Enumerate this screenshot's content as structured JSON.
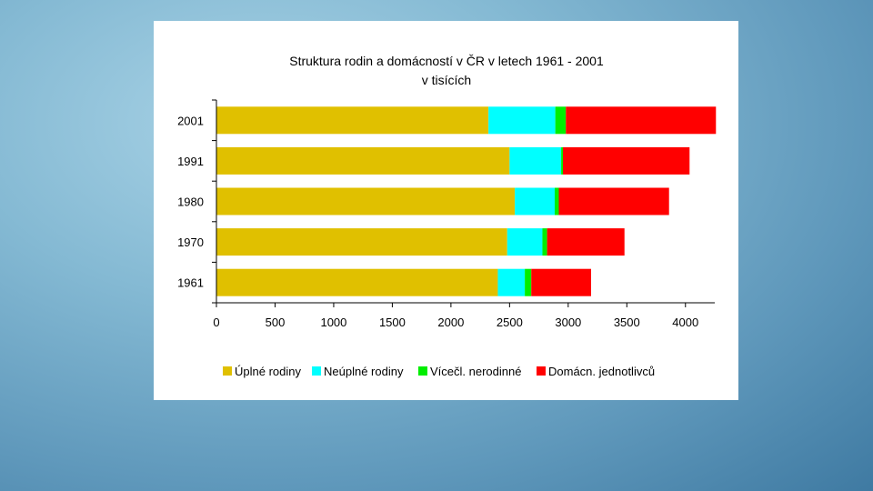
{
  "chart_data": {
    "type": "bar",
    "orientation": "horizontal",
    "stacked": true,
    "title": "Struktura rodin a domácností v ČR v letech 1961 - 2001",
    "subtitle": "v tisících",
    "categories": [
      "2001",
      "1991",
      "1980",
      "1970",
      "1961"
    ],
    "series": [
      {
        "name": "Úplné rodiny",
        "color": "#e0c000",
        "values": [
          2320,
          2500,
          2545,
          2480,
          2400
        ]
      },
      {
        "name": "Neúplné rodiny",
        "color": "#00ffff",
        "values": [
          570,
          440,
          340,
          300,
          230
        ]
      },
      {
        "name": "Vícečl. nerodinné",
        "color": "#00ee00",
        "values": [
          90,
          15,
          35,
          40,
          55
        ]
      },
      {
        "name": "Domácn. jednotlivců",
        "color": "#ff0000",
        "values": [
          1280,
          1080,
          940,
          660,
          510
        ]
      }
    ],
    "x_ticks": [
      0,
      500,
      1000,
      1500,
      2000,
      2500,
      3000,
      3500,
      4000
    ],
    "xlim": [
      0,
      4250
    ],
    "grid": false,
    "legend": "bottom"
  }
}
